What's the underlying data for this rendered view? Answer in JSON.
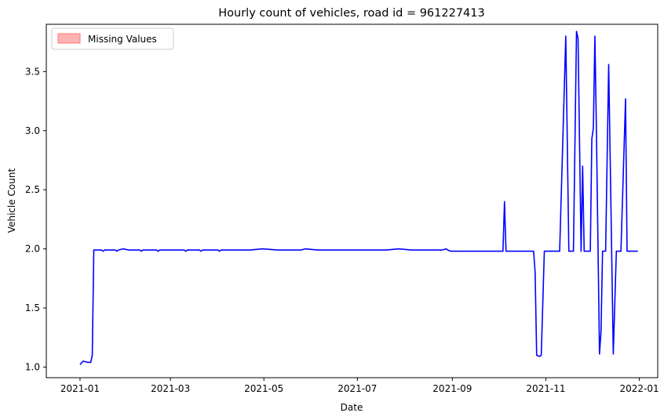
{
  "chart_data": {
    "type": "line",
    "title": "Hourly count of vehicles, road id = 961227413",
    "xlabel": "Date",
    "ylabel": "Vehicle Count",
    "x_ticks": [
      "2021-01",
      "2021-03",
      "2021-05",
      "2021-07",
      "2021-09",
      "2021-11",
      "2022-01"
    ],
    "y_ticks": [
      "1.0",
      "1.5",
      "2.0",
      "2.5",
      "3.0",
      "3.5"
    ],
    "xlim": [
      "2020-12-10",
      "2022-01-13"
    ],
    "ylim": [
      0.91,
      3.9
    ],
    "grid": false,
    "legend_position": "top-left",
    "legend": [
      {
        "label": "Missing Values",
        "color": "#ffb3b3",
        "edge": "#ff7777"
      }
    ],
    "series": [
      {
        "color": "#0000ff",
        "points": [
          [
            "2021-01-01",
            1.02
          ],
          [
            "2021-01-03",
            1.05
          ],
          [
            "2021-01-06",
            1.04
          ],
          [
            "2021-01-08",
            1.04
          ],
          [
            "2021-01-09",
            1.1
          ],
          [
            "2021-01-10",
            1.99
          ],
          [
            "2021-01-13",
            1.99
          ],
          [
            "2021-01-15",
            1.99
          ],
          [
            "2021-01-16",
            1.98
          ],
          [
            "2021-01-17",
            1.99
          ],
          [
            "2021-01-24",
            1.99
          ],
          [
            "2021-01-25",
            1.98
          ],
          [
            "2021-01-26",
            1.99
          ],
          [
            "2021-01-29",
            2.0
          ],
          [
            "2021-02-02",
            1.99
          ],
          [
            "2021-02-09",
            1.99
          ],
          [
            "2021-02-10",
            1.98
          ],
          [
            "2021-02-11",
            1.99
          ],
          [
            "2021-02-20",
            1.99
          ],
          [
            "2021-02-21",
            1.98
          ],
          [
            "2021-02-22",
            1.99
          ],
          [
            "2021-03-10",
            1.99
          ],
          [
            "2021-03-11",
            1.98
          ],
          [
            "2021-03-12",
            1.99
          ],
          [
            "2021-03-20",
            1.99
          ],
          [
            "2021-03-21",
            1.98
          ],
          [
            "2021-03-22",
            1.99
          ],
          [
            "2021-04-01",
            1.99
          ],
          [
            "2021-04-02",
            1.98
          ],
          [
            "2021-04-03",
            1.99
          ],
          [
            "2021-04-20",
            1.99
          ],
          [
            "2021-04-22",
            1.99
          ],
          [
            "2021-04-30",
            2.0
          ],
          [
            "2021-05-10",
            1.99
          ],
          [
            "2021-05-20",
            1.99
          ],
          [
            "2021-05-25",
            1.99
          ],
          [
            "2021-05-28",
            2.0
          ],
          [
            "2021-06-05",
            1.99
          ],
          [
            "2021-06-15",
            1.99
          ],
          [
            "2021-06-25",
            1.99
          ],
          [
            "2021-07-01",
            1.99
          ],
          [
            "2021-07-10",
            1.99
          ],
          [
            "2021-07-20",
            1.99
          ],
          [
            "2021-07-28",
            2.0
          ],
          [
            "2021-08-05",
            1.99
          ],
          [
            "2021-08-15",
            1.99
          ],
          [
            "2021-08-25",
            1.99
          ],
          [
            "2021-08-28",
            2.0
          ],
          [
            "2021-08-29",
            1.99
          ],
          [
            "2021-08-31",
            1.98
          ],
          [
            "2021-09-15",
            1.98
          ],
          [
            "2021-10-04",
            1.98
          ],
          [
            "2021-10-05",
            2.4
          ],
          [
            "2021-10-06",
            1.98
          ],
          [
            "2021-10-15",
            1.98
          ],
          [
            "2021-10-24",
            1.98
          ],
          [
            "2021-10-25",
            1.8
          ],
          [
            "2021-10-26",
            1.1
          ],
          [
            "2021-10-28",
            1.09
          ],
          [
            "2021-10-29",
            1.1
          ],
          [
            "2021-10-31",
            1.98
          ],
          [
            "2021-11-10",
            1.98
          ],
          [
            "2021-11-14",
            3.8
          ],
          [
            "2021-11-16",
            1.98
          ],
          [
            "2021-11-19",
            1.98
          ],
          [
            "2021-11-21",
            3.84
          ],
          [
            "2021-11-22",
            3.78
          ],
          [
            "2021-11-24",
            1.98
          ],
          [
            "2021-11-25",
            2.7
          ],
          [
            "2021-11-26",
            1.98
          ],
          [
            "2021-11-30",
            1.98
          ],
          [
            "2021-12-01",
            2.93
          ],
          [
            "2021-12-02",
            3.02
          ],
          [
            "2021-12-03",
            3.8
          ],
          [
            "2021-12-04",
            3.0
          ],
          [
            "2021-12-06",
            1.11
          ],
          [
            "2021-12-07",
            1.3
          ],
          [
            "2021-12-08",
            1.98
          ],
          [
            "2021-12-10",
            1.98
          ],
          [
            "2021-12-12",
            3.56
          ],
          [
            "2021-12-15",
            1.11
          ],
          [
            "2021-12-17",
            1.98
          ],
          [
            "2021-12-20",
            1.98
          ],
          [
            "2021-12-23",
            3.27
          ],
          [
            "2021-12-24",
            1.98
          ],
          [
            "2021-12-31",
            1.98
          ]
        ]
      }
    ]
  }
}
